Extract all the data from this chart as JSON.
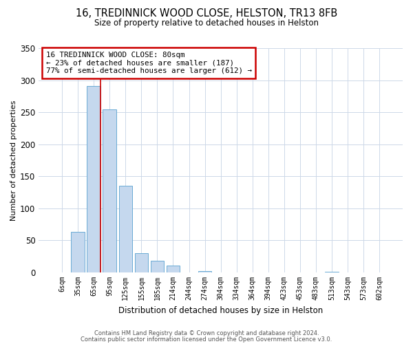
{
  "title": "16, TREDINNICK WOOD CLOSE, HELSTON, TR13 8FB",
  "subtitle": "Size of property relative to detached houses in Helston",
  "xlabel": "Distribution of detached houses by size in Helston",
  "ylabel": "Number of detached properties",
  "bar_labels": [
    "6sqm",
    "35sqm",
    "65sqm",
    "95sqm",
    "125sqm",
    "155sqm",
    "185sqm",
    "214sqm",
    "244sqm",
    "274sqm",
    "304sqm",
    "334sqm",
    "364sqm",
    "394sqm",
    "423sqm",
    "453sqm",
    "483sqm",
    "513sqm",
    "543sqm",
    "573sqm",
    "602sqm"
  ],
  "bar_values": [
    0,
    63,
    291,
    255,
    135,
    30,
    18,
    11,
    0,
    2,
    0,
    0,
    0,
    0,
    0,
    0,
    0,
    1,
    0,
    0,
    0
  ],
  "bar_color": "#c5d8ee",
  "bar_edge_color": "#6aaad4",
  "ylim": [
    0,
    350
  ],
  "yticks": [
    0,
    50,
    100,
    150,
    200,
    250,
    300,
    350
  ],
  "vline_x_idx": 2,
  "vline_color": "#cc0000",
  "annotation_line1": "16 TREDINNICK WOOD CLOSE: 80sqm",
  "annotation_line2": "← 23% of detached houses are smaller (187)",
  "annotation_line3": "77% of semi-detached houses are larger (612) →",
  "annotation_box_color": "#ffffff",
  "annotation_box_edge": "#cc0000",
  "footer1": "Contains HM Land Registry data © Crown copyright and database right 2024.",
  "footer2": "Contains public sector information licensed under the Open Government Licence v3.0.",
  "background_color": "#ffffff",
  "grid_color": "#cdd8e8"
}
